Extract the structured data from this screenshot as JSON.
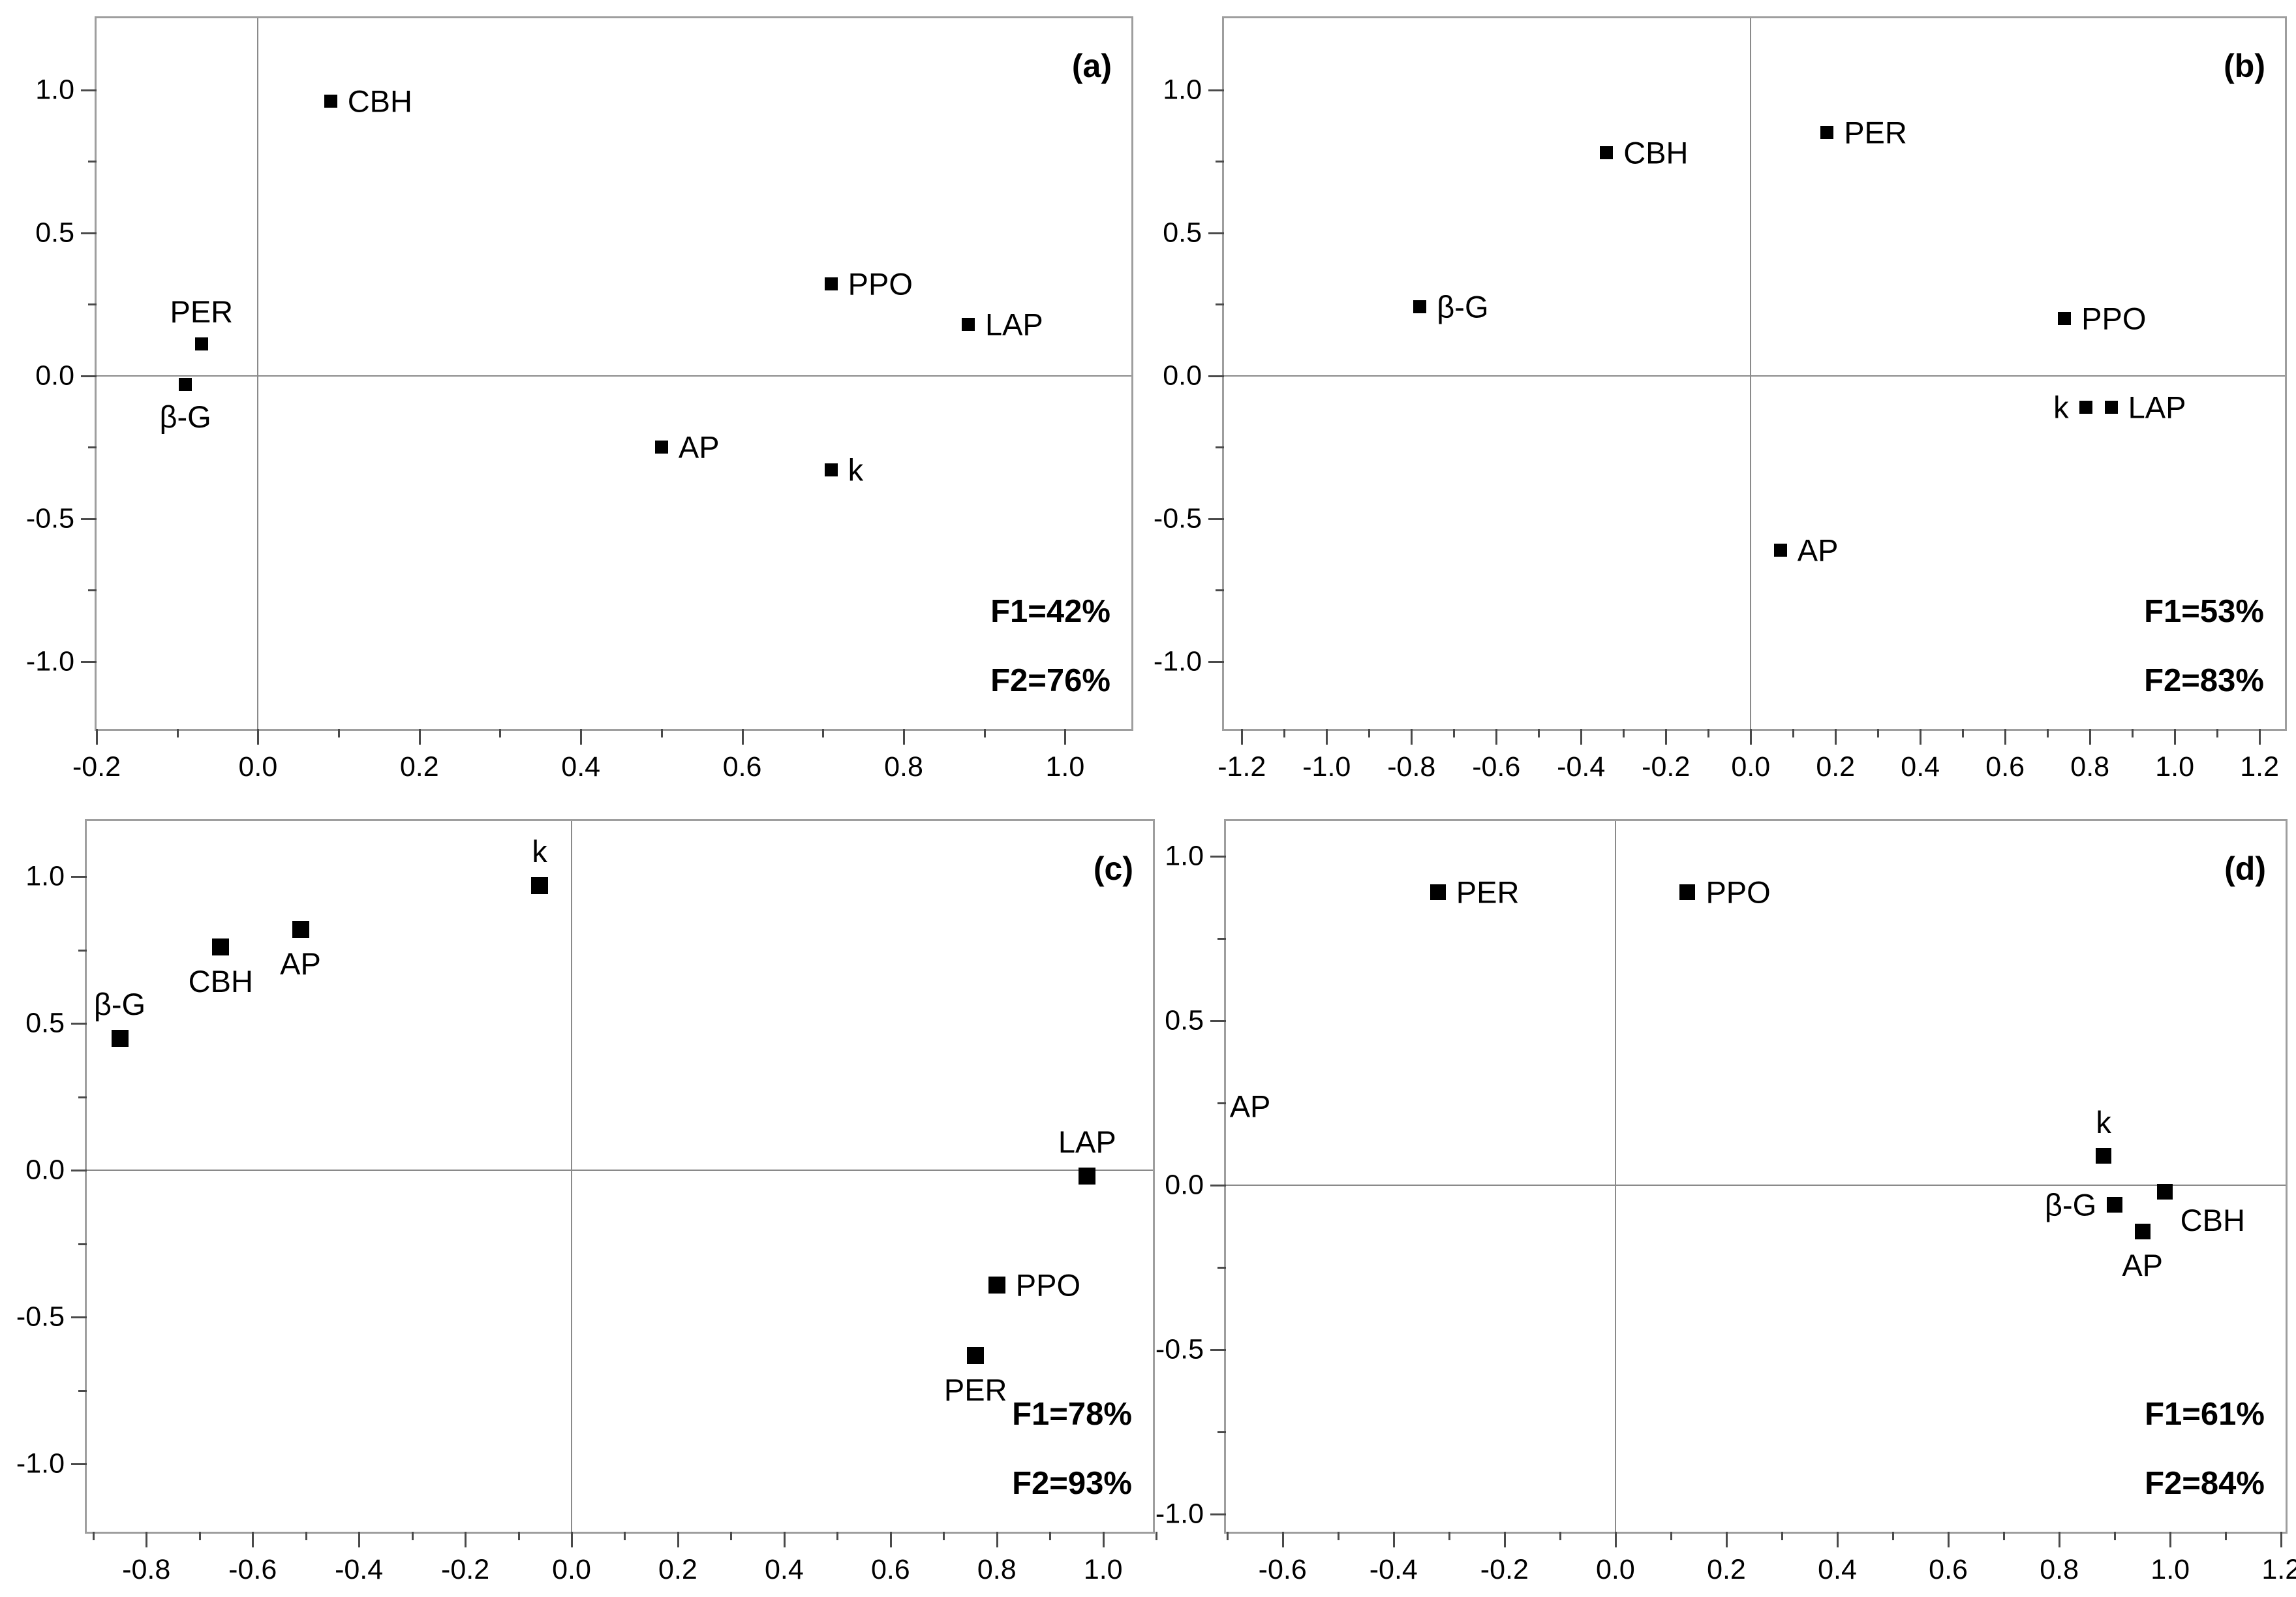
{
  "figure": {
    "background_color": "#ffffff",
    "marker_color": "#000000",
    "border_color": "#9e9e9e",
    "zero_line_color": "#8a8a8a",
    "tick_color": "#4a4a4a"
  },
  "chart_data": [
    {
      "id": "a",
      "type": "scatter",
      "panel_letter": "(a)",
      "variance_labels": [
        "F1=42%",
        "F2=76%"
      ],
      "title": "",
      "xlabel": "",
      "ylabel": "",
      "grid": false,
      "x_axis": {
        "range": [
          -0.2,
          1.087
        ],
        "tick_labels": [
          "-0.2",
          "0.0",
          "0.2",
          "0.4",
          "0.6",
          "0.8",
          "1.0"
        ],
        "minor_step": 0.1
      },
      "y_axis": {
        "range": [
          -1.25,
          1.25
        ],
        "tick_labels": [
          "1.0",
          "0.5",
          "0.0",
          "-0.5",
          "-1.0"
        ],
        "minor_step": 0.25
      },
      "points": [
        {
          "label": "CBH",
          "x": 0.09,
          "y": 0.96,
          "label_pos": "right"
        },
        {
          "label": "PER",
          "x": -0.07,
          "y": 0.11,
          "label_pos": "above"
        },
        {
          "label": "β-G",
          "x": -0.09,
          "y": -0.03,
          "label_pos": "below"
        },
        {
          "label": "PPO",
          "x": 0.71,
          "y": 0.32,
          "label_pos": "right"
        },
        {
          "label": "LAP",
          "x": 0.88,
          "y": 0.18,
          "label_pos": "right"
        },
        {
          "label": "AP",
          "x": 0.5,
          "y": -0.25,
          "label_pos": "right"
        },
        {
          "label": "k",
          "x": 0.71,
          "y": -0.33,
          "label_pos": "right"
        }
      ],
      "extra_labels": []
    },
    {
      "id": "b",
      "type": "scatter",
      "panel_letter": "(b)",
      "variance_labels": [
        "F1=53%",
        "F2=83%"
      ],
      "title": "",
      "xlabel": "",
      "ylabel": "",
      "grid": false,
      "x_axis": {
        "range": [
          -1.242,
          1.269
        ],
        "tick_labels": [
          "-1.2",
          "-1.0",
          "-0.8",
          "-0.6",
          "-0.4",
          "-0.2",
          "0.0",
          "0.2",
          "0.4",
          "0.6",
          "0.8",
          "1.0",
          "1.2"
        ],
        "minor_step": 0.1
      },
      "y_axis": {
        "range": [
          -1.25,
          1.25
        ],
        "tick_labels": [
          "1.0",
          "0.5",
          "0.0",
          "-0.5",
          "-1.0"
        ],
        "minor_step": 0.25
      },
      "points": [
        {
          "label": "PER",
          "x": 0.18,
          "y": 0.85,
          "label_pos": "right"
        },
        {
          "label": "CBH",
          "x": -0.34,
          "y": 0.78,
          "label_pos": "right"
        },
        {
          "label": "β-G",
          "x": -0.78,
          "y": 0.24,
          "label_pos": "right"
        },
        {
          "label": "PPO",
          "x": 0.74,
          "y": 0.2,
          "label_pos": "right"
        },
        {
          "label": "k",
          "x": 0.79,
          "y": -0.11,
          "label_pos": "left"
        },
        {
          "label": "LAP",
          "x": 0.85,
          "y": -0.11,
          "label_pos": "right"
        },
        {
          "label": "AP",
          "x": 0.07,
          "y": -0.61,
          "label_pos": "right"
        }
      ],
      "extra_labels": []
    },
    {
      "id": "c",
      "type": "scatter",
      "panel_letter": "(c)",
      "variance_labels": [
        "F1=78%",
        "F2=93%"
      ],
      "title": "",
      "xlabel": "",
      "ylabel": "",
      "grid": false,
      "x_axis": {
        "range": [
          -0.912,
          1.101
        ],
        "tick_labels": [
          "-0.8",
          "-0.6",
          "-0.4",
          "-0.2",
          "0.0",
          "0.2",
          "0.4",
          "0.6",
          "0.8",
          "1.0"
        ],
        "minor_step": 0.1
      },
      "y_axis": {
        "range": [
          -1.244,
          1.189
        ],
        "tick_labels": [
          "1.0",
          "0.5",
          "0.0",
          "-0.5",
          "-1.0"
        ],
        "minor_step": 0.25
      },
      "points": [
        {
          "label": "k",
          "x": -0.06,
          "y": 0.97,
          "label_pos": "above"
        },
        {
          "label": "AP",
          "x": -0.51,
          "y": 0.82,
          "label_pos": "below"
        },
        {
          "label": "CBH",
          "x": -0.66,
          "y": 0.76,
          "label_pos": "below"
        },
        {
          "label": "β-G",
          "x": -0.85,
          "y": 0.45,
          "label_pos": "above"
        },
        {
          "label": "LAP",
          "x": 0.97,
          "y": -0.02,
          "label_pos": "above"
        },
        {
          "label": "PPO",
          "x": 0.8,
          "y": -0.39,
          "label_pos": "right"
        },
        {
          "label": "PER",
          "x": 0.76,
          "y": -0.63,
          "label_pos": "below"
        }
      ],
      "extra_labels": []
    },
    {
      "id": "d",
      "type": "scatter",
      "panel_letter": "(d)",
      "variance_labels": [
        "F1=61%",
        "F2=84%"
      ],
      "title": "",
      "xlabel": "",
      "ylabel": "",
      "grid": false,
      "x_axis": {
        "range": [
          -0.702,
          1.215
        ],
        "tick_labels": [
          "-0.6",
          "-0.4",
          "-0.2",
          "0.0",
          "0.2",
          "0.4",
          "0.6",
          "0.8",
          "1.0",
          "1.2"
        ],
        "minor_step": 0.1
      },
      "y_axis": {
        "range": [
          -1.065,
          1.107
        ],
        "tick_labels": [
          "1.0",
          "0.5",
          "0.0",
          "-0.5",
          "-1.0"
        ],
        "minor_step": 0.25
      },
      "points": [
        {
          "label": "PER",
          "x": -0.32,
          "y": 0.89,
          "label_pos": "right"
        },
        {
          "label": "PPO",
          "x": 0.13,
          "y": 0.89,
          "label_pos": "right"
        },
        {
          "label": "k",
          "x": 0.88,
          "y": 0.09,
          "label_pos": "above"
        },
        {
          "label": "CBH",
          "x": 0.99,
          "y": -0.02,
          "label_pos": "below-right"
        },
        {
          "label": "β-G",
          "x": 0.9,
          "y": -0.06,
          "label_pos": "left"
        },
        {
          "label": "AP",
          "x": 0.95,
          "y": -0.14,
          "label_pos": "below"
        }
      ],
      "extra_labels": [
        {
          "text": "AP",
          "x": -0.7,
          "y": 0.24,
          "align": "left-edge"
        }
      ]
    }
  ]
}
